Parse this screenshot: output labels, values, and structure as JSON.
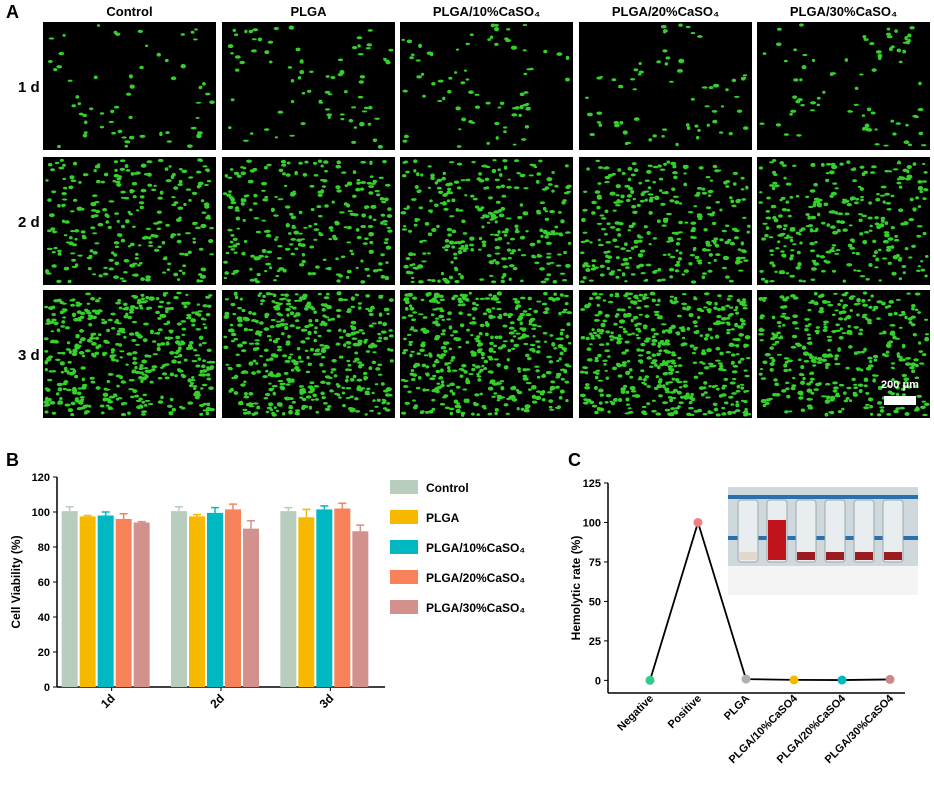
{
  "panel_a": {
    "panel": "A",
    "columns": [
      "Control",
      "PLGA",
      "PLGA/10%CaSO₄",
      "PLGA/20%CaSO₄",
      "PLGA/30%CaSO₄"
    ],
    "rows": [
      "1 d",
      "2 d",
      "3 d"
    ],
    "scale_bar": "200 μm"
  },
  "chart_data": [
    {
      "type": "bar",
      "panel": "B",
      "y_label": "Cell Viability (%)",
      "categories": [
        "1d",
        "2d",
        "3d"
      ],
      "ylim": [
        0,
        120
      ],
      "yticks": [
        0,
        20,
        40,
        60,
        80,
        100,
        120
      ],
      "legend": "right",
      "series": [
        {
          "name": "Control",
          "color": "#b8cdbd",
          "values": [
            100.5,
            100.5,
            100.5
          ],
          "errors": [
            2.5,
            2.5,
            2
          ]
        },
        {
          "name": "PLGA",
          "color": "#f7b900",
          "values": [
            97.5,
            97.5,
            97
          ],
          "errors": [
            0.5,
            1,
            4.5
          ]
        },
        {
          "name": "PLGA/10%CaSO₄",
          "color": "#00b8c2",
          "values": [
            98,
            99.5,
            101.5
          ],
          "errors": [
            2,
            3,
            2
          ]
        },
        {
          "name": "PLGA/20%CaSO₄",
          "color": "#f7825a",
          "values": [
            96,
            101.5,
            102
          ],
          "errors": [
            3,
            3,
            3
          ]
        },
        {
          "name": "PLGA/30%CaSO₄",
          "color": "#d3918e",
          "values": [
            94,
            90.5,
            89
          ],
          "errors": [
            0.5,
            4.5,
            3.5
          ]
        }
      ]
    },
    {
      "type": "line",
      "panel": "C",
      "y_label": "Hemolytic rate (%)",
      "categories": [
        "Negative",
        "Positive",
        "PLGA",
        "PLGA/10%CaSO4",
        "PLGA/20%CaSO4",
        "PLGA/30%CaSO4"
      ],
      "ylim": [
        -8,
        125
      ],
      "yticks": [
        0,
        25,
        50,
        75,
        100,
        125
      ],
      "series": [
        {
          "color": "#000000",
          "values": [
            0,
            100,
            0.8,
            0.3,
            0.2,
            0.6
          ],
          "point_colors": [
            "#2ecc8a",
            "#f08080",
            "#b0b0b0",
            "#f7b900",
            "#00b8c2",
            "#c98a88"
          ]
        }
      ]
    }
  ]
}
